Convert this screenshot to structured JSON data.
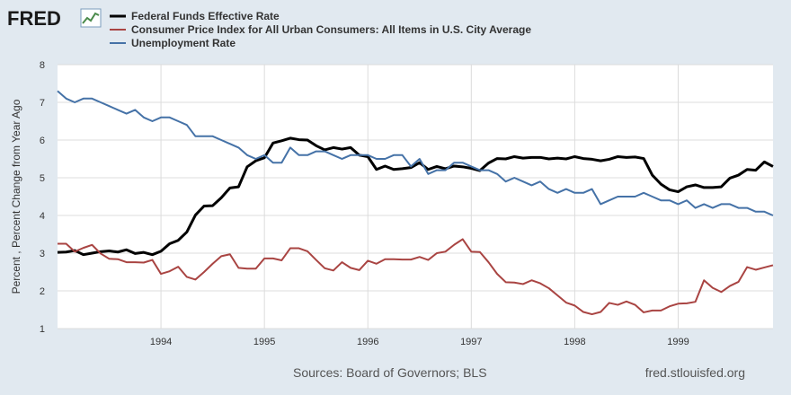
{
  "logo": {
    "text": "FRED"
  },
  "chart_data": {
    "type": "line",
    "ylabel": "Percent , Percent Change from Year Ago",
    "ylim": [
      1,
      8
    ],
    "yticks": [
      1,
      2,
      3,
      4,
      5,
      6,
      7,
      8
    ],
    "xlim": [
      1993.0,
      1999.917
    ],
    "xticks": [
      {
        "value": 1994,
        "label": "1994"
      },
      {
        "value": 1995,
        "label": "1995"
      },
      {
        "value": 1996,
        "label": "1996"
      },
      {
        "value": 1997,
        "label": "1997"
      },
      {
        "value": 1998,
        "label": "1998"
      },
      {
        "value": 1999,
        "label": "1999"
      }
    ],
    "grid": true,
    "legend_position": "top",
    "series": [
      {
        "name": "Federal Funds Effective Rate",
        "color": "#000000",
        "width": 3,
        "start": 1993.0,
        "step": 0.0833333,
        "values": [
          3.02,
          3.03,
          3.07,
          2.96,
          3.0,
          3.04,
          3.06,
          3.03,
          3.09,
          2.99,
          3.02,
          2.96,
          3.05,
          3.25,
          3.34,
          3.56,
          4.01,
          4.25,
          4.26,
          4.47,
          4.73,
          4.76,
          5.29,
          5.45,
          5.53,
          5.92,
          5.98,
          6.05,
          6.01,
          6.0,
          5.85,
          5.74,
          5.8,
          5.76,
          5.8,
          5.6,
          5.56,
          5.22,
          5.31,
          5.22,
          5.24,
          5.27,
          5.4,
          5.22,
          5.3,
          5.24,
          5.31,
          5.29,
          5.25,
          5.19,
          5.39,
          5.51,
          5.5,
          5.56,
          5.52,
          5.54,
          5.54,
          5.5,
          5.52,
          5.5,
          5.56,
          5.51,
          5.49,
          5.45,
          5.49,
          5.56,
          5.54,
          5.55,
          5.51,
          5.07,
          4.83,
          4.68,
          4.63,
          4.76,
          4.81,
          4.74,
          4.74,
          4.76,
          4.99,
          5.07,
          5.22,
          5.2,
          5.42,
          5.3
        ]
      },
      {
        "name": "Consumer Price Index for All Urban Consumers: All Items in U.S. City Average",
        "color": "#a94442",
        "width": 2,
        "start": 1993.0,
        "step": 0.0833333,
        "values": [
          3.25,
          3.25,
          3.04,
          3.14,
          3.22,
          2.99,
          2.85,
          2.84,
          2.76,
          2.76,
          2.75,
          2.82,
          2.45,
          2.52,
          2.64,
          2.37,
          2.3,
          2.5,
          2.72,
          2.92,
          2.97,
          2.61,
          2.59,
          2.59,
          2.86,
          2.86,
          2.81,
          3.13,
          3.13,
          3.05,
          2.82,
          2.6,
          2.54,
          2.76,
          2.61,
          2.55,
          2.8,
          2.72,
          2.84,
          2.84,
          2.83,
          2.83,
          2.9,
          2.82,
          3.0,
          3.04,
          3.22,
          3.37,
          3.04,
          3.03,
          2.76,
          2.45,
          2.23,
          2.22,
          2.18,
          2.28,
          2.2,
          2.07,
          1.88,
          1.69,
          1.61,
          1.44,
          1.38,
          1.44,
          1.68,
          1.63,
          1.72,
          1.63,
          1.43,
          1.48,
          1.48,
          1.59,
          1.66,
          1.67,
          1.71,
          2.28,
          2.08,
          1.97,
          2.13,
          2.24,
          2.63,
          2.56,
          2.62,
          2.68
        ]
      },
      {
        "name": "Unemployment Rate",
        "color": "#4572a7",
        "width": 2,
        "start": 1993.0,
        "step": 0.0833333,
        "values": [
          7.3,
          7.1,
          7.0,
          7.1,
          7.1,
          7.0,
          6.9,
          6.8,
          6.7,
          6.8,
          6.6,
          6.5,
          6.6,
          6.6,
          6.5,
          6.4,
          6.1,
          6.1,
          6.1,
          6.0,
          5.9,
          5.8,
          5.6,
          5.5,
          5.6,
          5.4,
          5.4,
          5.8,
          5.6,
          5.6,
          5.7,
          5.7,
          5.6,
          5.5,
          5.6,
          5.6,
          5.6,
          5.5,
          5.5,
          5.6,
          5.6,
          5.3,
          5.5,
          5.1,
          5.2,
          5.2,
          5.4,
          5.4,
          5.3,
          5.2,
          5.2,
          5.1,
          4.9,
          5.0,
          4.9,
          4.8,
          4.9,
          4.7,
          4.6,
          4.7,
          4.6,
          4.6,
          4.7,
          4.3,
          4.4,
          4.5,
          4.5,
          4.5,
          4.6,
          4.5,
          4.4,
          4.4,
          4.3,
          4.4,
          4.2,
          4.3,
          4.2,
          4.3,
          4.3,
          4.2,
          4.2,
          4.1,
          4.1,
          4.0
        ]
      }
    ]
  },
  "footer": {
    "sources": "Sources: Board of Governors; BLS",
    "site": "fred.stlouisfed.org"
  }
}
